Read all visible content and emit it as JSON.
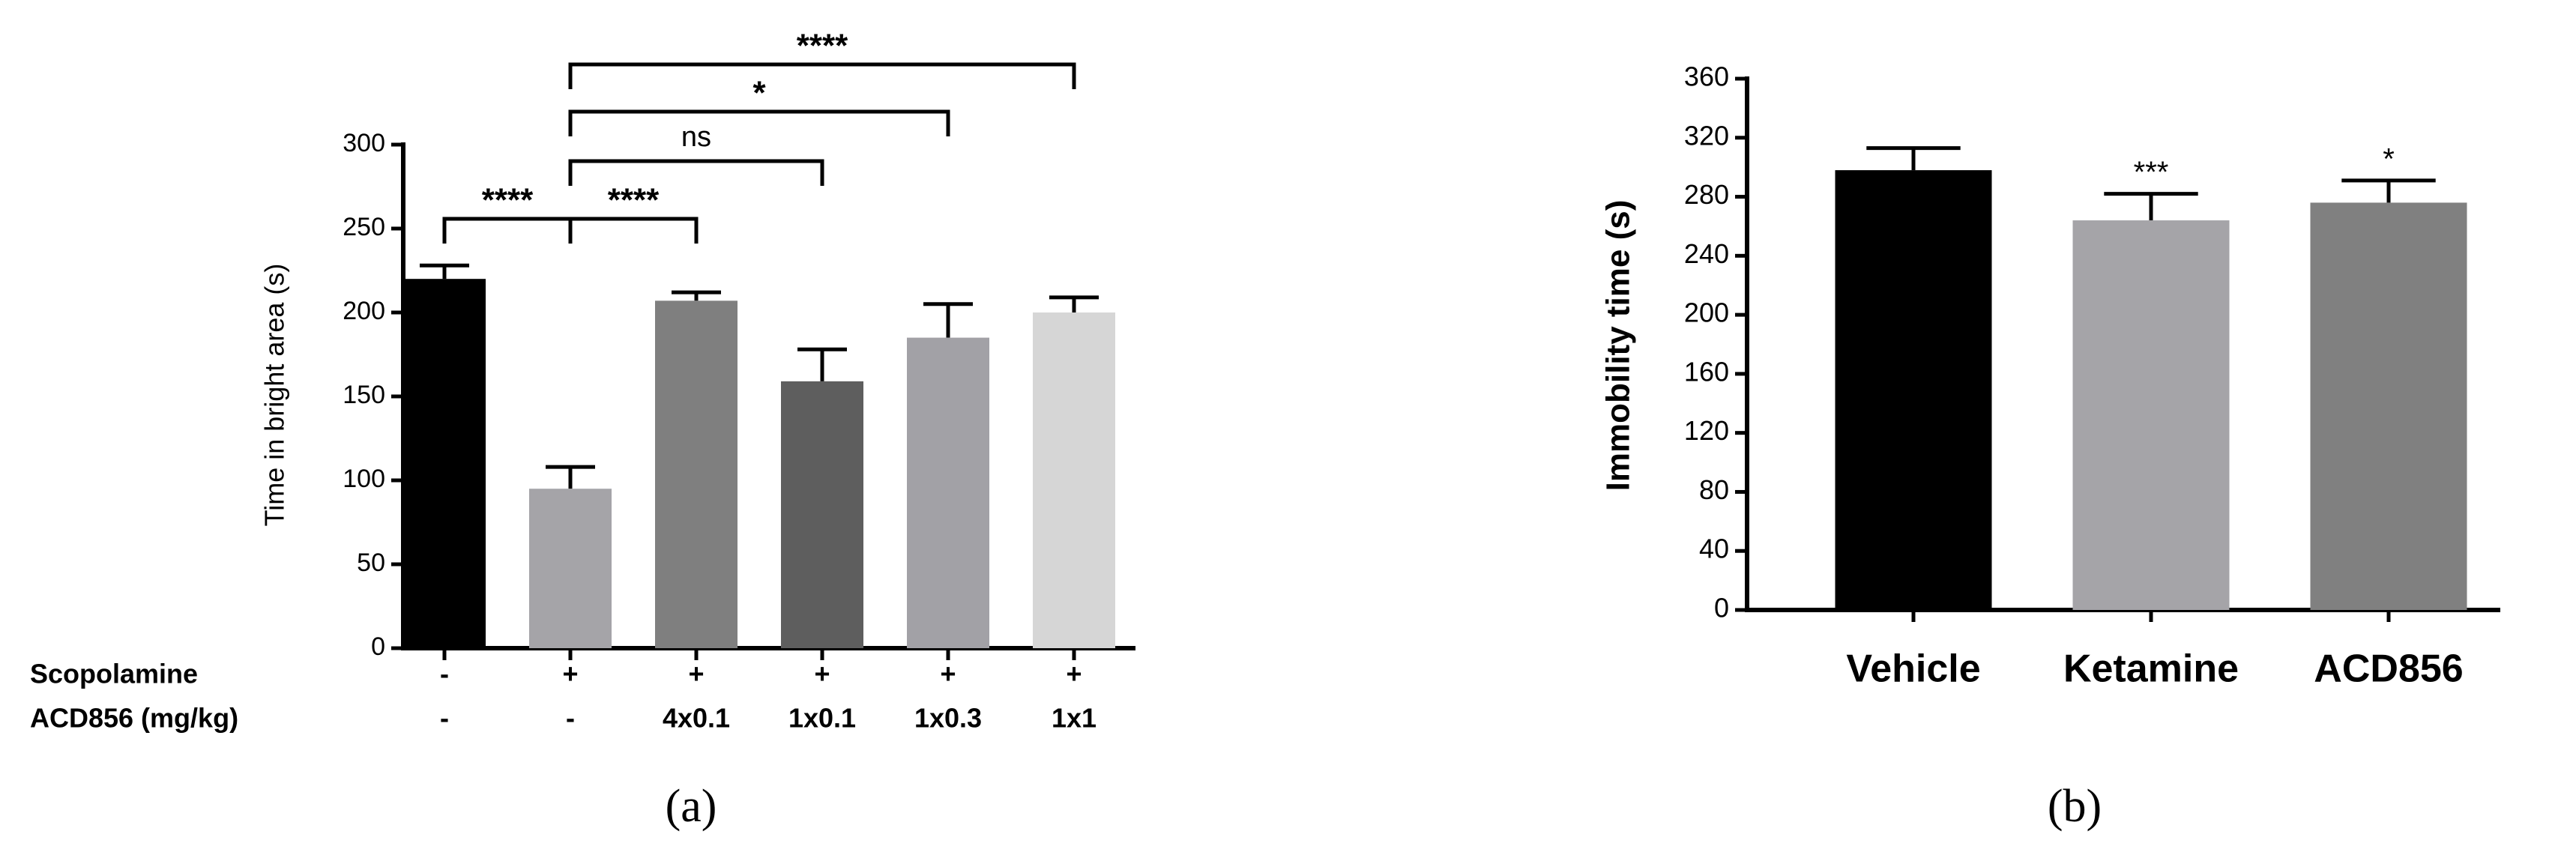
{
  "chart_data": [
    {
      "type": "bar",
      "panel_label": "(a)",
      "ylabel": "Time in  bright area (s)",
      "category_rows": [
        {
          "name": "Scopolamine",
          "labels": [
            "-",
            "+",
            "+",
            "+",
            "+",
            "+"
          ]
        },
        {
          "name": "ACD856 (mg/kg)",
          "labels": [
            "-",
            "-",
            "4x0.1",
            "1x0.1",
            "1x0.3",
            "1x1"
          ]
        }
      ],
      "values": [
        220,
        95,
        207,
        159,
        185,
        200
      ],
      "errors": [
        8,
        13,
        5,
        19,
        20,
        9
      ],
      "colors": [
        "#000000",
        "#a5a4a8",
        "#7f7f7f",
        "#5e5e5e",
        "#a2a1a6",
        "#d6d6d6"
      ],
      "ylim": [
        0,
        300
      ],
      "yticks": [
        0,
        50,
        100,
        150,
        200,
        250,
        300
      ],
      "brackets": [
        {
          "from": 0,
          "to": 1,
          "label": "****"
        },
        {
          "from": 1,
          "to": 2,
          "label": "****"
        },
        {
          "from": 1,
          "to": 3,
          "label": "ns"
        },
        {
          "from": 1,
          "to": 4,
          "label": "*"
        },
        {
          "from": 1,
          "to": 5,
          "label": "****"
        }
      ]
    },
    {
      "type": "bar",
      "panel_label": "(b)",
      "ylabel": "Immobility time (s)",
      "categories": [
        "Vehicle",
        "Ketamine",
        "ACD856"
      ],
      "values": [
        298,
        264,
        276
      ],
      "errors": [
        15,
        18,
        15
      ],
      "colors": [
        "#000000",
        "#a5a4a8",
        "#808080"
      ],
      "annotations": [
        null,
        "***",
        "*"
      ],
      "ylim": [
        0,
        360
      ],
      "yticks": [
        0,
        40,
        80,
        120,
        160,
        200,
        240,
        280,
        320,
        360
      ]
    }
  ]
}
